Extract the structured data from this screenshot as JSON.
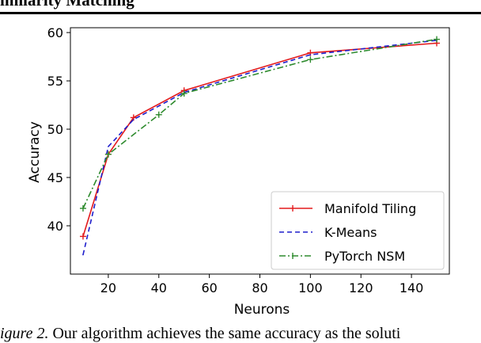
{
  "header": {
    "text": "imilarity Matching"
  },
  "caption": {
    "fig_label": "igure 2.",
    "text": "Our algorithm achieves the same accuracy as the soluti"
  },
  "chart_data": {
    "type": "line",
    "xlabel": "Neurons",
    "ylabel": "Accuracy",
    "xlim": [
      5,
      155
    ],
    "ylim": [
      35,
      60.5
    ],
    "x_ticks": [
      20,
      40,
      60,
      80,
      100,
      120,
      140
    ],
    "y_ticks": [
      40,
      45,
      50,
      55,
      60
    ],
    "grid": false,
    "legend_position": "lower-right",
    "series": [
      {
        "name": "Manifold Tiling",
        "color": "#e31a1c",
        "dash": "solid",
        "marker": "+",
        "x": [
          10,
          20,
          30,
          50,
          100,
          150
        ],
        "y": [
          38.9,
          47.4,
          51.2,
          54.0,
          57.9,
          58.9
        ]
      },
      {
        "name": "K-Means",
        "color": "#1f1fcc",
        "dash": "dashed",
        "marker": "none",
        "x": [
          10,
          20,
          30,
          50,
          100,
          150
        ],
        "y": [
          37.0,
          48.2,
          51.0,
          53.8,
          57.7,
          59.2
        ]
      },
      {
        "name": "PyTorch NSM",
        "color": "#2e8b2e",
        "dash": "dashdot",
        "marker": "+",
        "x": [
          10,
          20,
          40,
          50,
          100,
          150
        ],
        "y": [
          41.8,
          47.4,
          51.5,
          53.7,
          57.2,
          59.3
        ]
      }
    ]
  }
}
